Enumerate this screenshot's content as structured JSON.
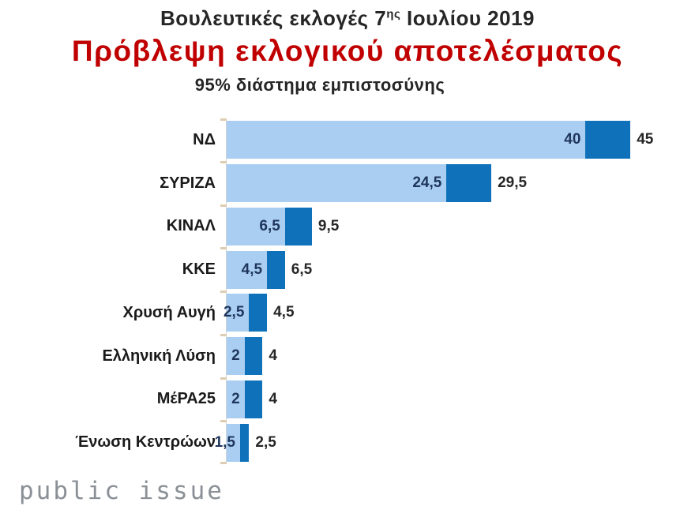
{
  "header": {
    "title_prefix": "Βουλευτικές εκλογές 7",
    "title_sup": "ης",
    "title_suffix": " Ιουλίου 2019",
    "subtitle": "Πρόβλεψη εκλογικού αποτελέσματος",
    "note": "95% διάστημα εμπιστοσύνης"
  },
  "footer": {
    "logo_text": "public issue"
  },
  "colors": {
    "bar_light": "#A9CEF1",
    "bar_dark": "#0F71B9",
    "subtitle_red": "#C00000",
    "title_text": "#262626",
    "value_inside": "#1F355B",
    "value_outside": "#262626",
    "tick": "#DDCDB2",
    "axis_line": "#CCD4DC",
    "logo_gray": "#8A9096"
  },
  "chart_data": {
    "type": "bar",
    "orientation": "horizontal",
    "title": "Πρόβλεψη εκλογικού αποτελέσματος",
    "subtitle": "95% διάστημα εμπιστοσύνης",
    "xlim": [
      0,
      45
    ],
    "grid": false,
    "legend": false,
    "categories": [
      "ΝΔ",
      "ΣΥΡΙΖΑ",
      "ΚΙΝΑΛ",
      "ΚΚΕ",
      "Χρυσή Αυγή",
      "Ελληνική Λύση",
      "ΜέΡΑ25",
      "Ένωση Κεντρώων"
    ],
    "series": [
      {
        "name": "lower-bound",
        "values": [
          40,
          24.5,
          6.5,
          4.5,
          2.5,
          2,
          2,
          1.5
        ]
      },
      {
        "name": "upper-bound",
        "values": [
          45,
          29.5,
          9.5,
          6.5,
          4.5,
          4,
          4,
          2.5
        ]
      }
    ],
    "value_labels": [
      {
        "low": "40",
        "high": "45"
      },
      {
        "low": "24,5",
        "high": "29,5"
      },
      {
        "low": "6,5",
        "high": "9,5"
      },
      {
        "low": "4,5",
        "high": "6,5"
      },
      {
        "low": "2,5",
        "high": "4,5"
      },
      {
        "low": "2",
        "high": "4"
      },
      {
        "low": "2",
        "high": "4"
      },
      {
        "low": "1,5",
        "high": "2,5"
      }
    ]
  }
}
